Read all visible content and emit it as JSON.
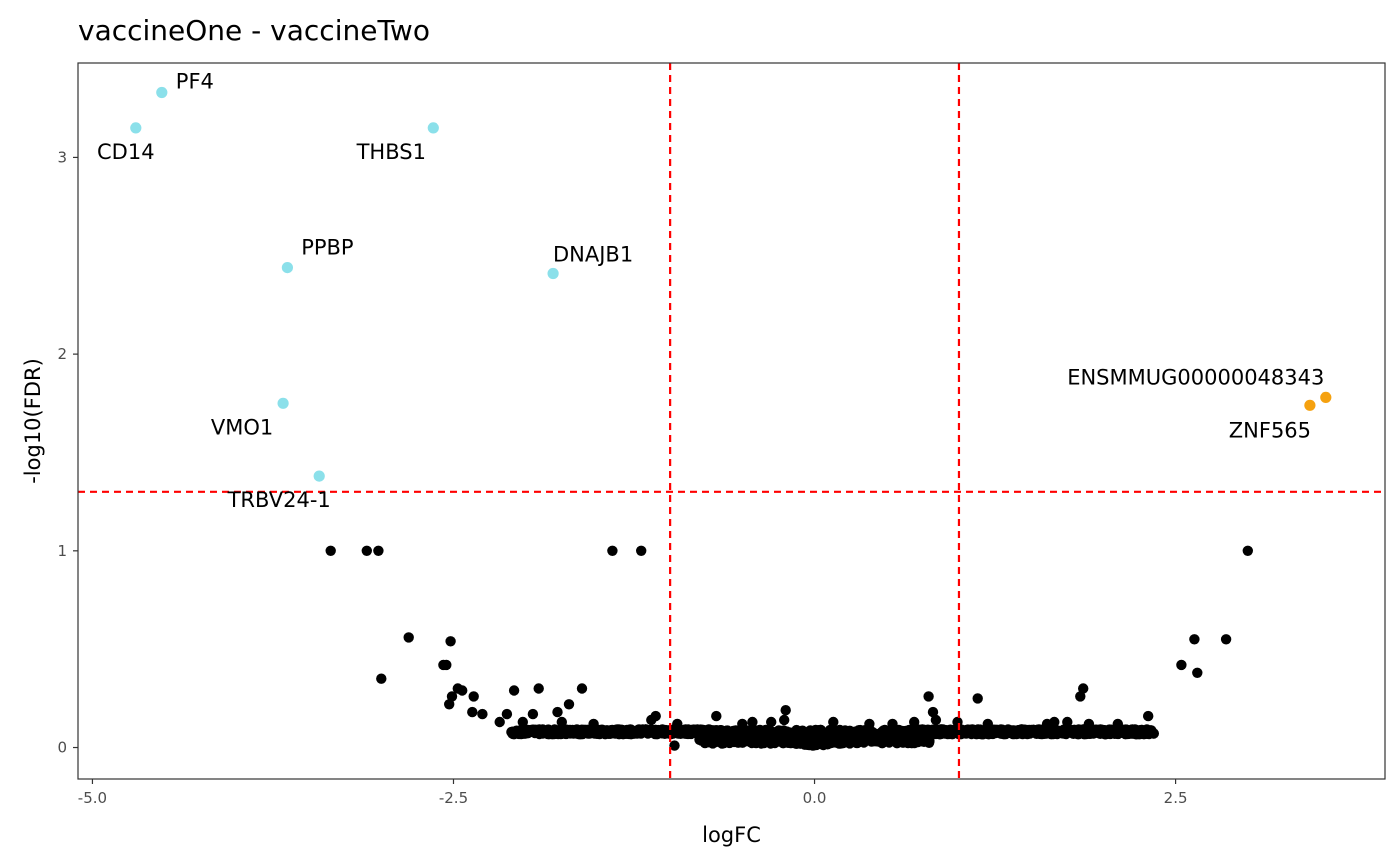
{
  "chart_data": {
    "type": "scatter",
    "title": "vaccineOne - vaccineTwo",
    "xlabel": "logFC",
    "ylabel": "-log10(FDR)",
    "xlim": [
      -5.1,
      3.95
    ],
    "ylim": [
      -0.16,
      3.48
    ],
    "xticks": [
      -5,
      -2.5,
      0,
      2.5
    ],
    "xtick_labels": [
      "-5.0",
      "-2.5",
      "0.0",
      "2.5"
    ],
    "yticks": [
      0,
      1,
      2,
      3
    ],
    "ytick_labels": [
      "0",
      "1",
      "2",
      "3"
    ],
    "thresholds": {
      "logFC": [
        -1,
        1
      ],
      "neg_log10_fdr": 1.3,
      "color": "#ff0000"
    },
    "colors": {
      "down": "#8be0ea",
      "up": "#f5a10f",
      "ns": "#000000"
    },
    "highlighted": [
      {
        "gene": "PF4",
        "x": -4.52,
        "y": 3.33,
        "group": "down"
      },
      {
        "gene": "CD14",
        "x": -4.7,
        "y": 3.15,
        "group": "down"
      },
      {
        "gene": "THBS1",
        "x": -2.64,
        "y": 3.15,
        "group": "down"
      },
      {
        "gene": "PPBP",
        "x": -3.65,
        "y": 2.44,
        "group": "down"
      },
      {
        "gene": "DNAJB1",
        "x": -1.81,
        "y": 2.41,
        "group": "down"
      },
      {
        "gene": "VMO1",
        "x": -3.68,
        "y": 1.75,
        "group": "down"
      },
      {
        "gene": "TRBV24-1",
        "x": -3.43,
        "y": 1.38,
        "group": "down"
      },
      {
        "gene": "ENSMMUG00000048343",
        "x": 3.54,
        "y": 1.78,
        "group": "up"
      },
      {
        "gene": "ZNF565",
        "x": 3.43,
        "y": 1.74,
        "group": "up"
      }
    ],
    "other_points": [
      [
        -3.35,
        1.0
      ],
      [
        -3.1,
        1.0
      ],
      [
        -3.02,
        1.0
      ],
      [
        -1.4,
        1.0
      ],
      [
        -1.2,
        1.0
      ],
      [
        3.0,
        1.0
      ],
      [
        -2.81,
        0.56
      ],
      [
        -2.57,
        0.42
      ],
      [
        -2.55,
        0.42
      ],
      [
        -2.52,
        0.54
      ],
      [
        -3.0,
        0.35
      ],
      [
        -2.36,
        0.26
      ],
      [
        -2.47,
        0.3
      ],
      [
        -2.44,
        0.29
      ],
      [
        -2.51,
        0.26
      ],
      [
        -2.53,
        0.22
      ],
      [
        -2.08,
        0.29
      ],
      [
        -1.91,
        0.3
      ],
      [
        -1.61,
        0.3
      ],
      [
        -1.7,
        0.22
      ],
      [
        -2.37,
        0.18
      ],
      [
        -2.3,
        0.17
      ],
      [
        -2.13,
        0.17
      ],
      [
        -1.95,
        0.17
      ],
      [
        -1.78,
        0.18
      ],
      [
        -2.18,
        0.13
      ],
      [
        -2.02,
        0.13
      ],
      [
        -1.75,
        0.13
      ],
      [
        -1.53,
        0.12
      ],
      [
        -1.1,
        0.16
      ],
      [
        -1.13,
        0.14
      ],
      [
        -0.95,
        0.12
      ],
      [
        -0.68,
        0.16
      ],
      [
        -0.5,
        0.12
      ],
      [
        -0.43,
        0.13
      ],
      [
        -0.3,
        0.13
      ],
      [
        -0.21,
        0.14
      ],
      [
        0.13,
        0.13
      ],
      [
        0.38,
        0.12
      ],
      [
        0.54,
        0.12
      ],
      [
        0.69,
        0.13
      ],
      [
        0.79,
        0.26
      ],
      [
        0.82,
        0.18
      ],
      [
        0.84,
        0.14
      ],
      [
        0.99,
        0.13
      ],
      [
        1.13,
        0.25
      ],
      [
        1.2,
        0.12
      ],
      [
        1.61,
        0.12
      ],
      [
        1.66,
        0.13
      ],
      [
        1.75,
        0.13
      ],
      [
        1.84,
        0.26
      ],
      [
        1.86,
        0.3
      ],
      [
        1.9,
        0.12
      ],
      [
        2.1,
        0.12
      ],
      [
        2.31,
        0.16
      ],
      [
        2.54,
        0.42
      ],
      [
        2.63,
        0.55
      ],
      [
        2.65,
        0.38
      ],
      [
        2.85,
        0.55
      ],
      [
        -0.2,
        0.19
      ],
      [
        -0.97,
        0.01
      ]
    ],
    "background_dense": {
      "x_min": -2.1,
      "x_max": 2.35,
      "y_floor": 0.08
    }
  }
}
